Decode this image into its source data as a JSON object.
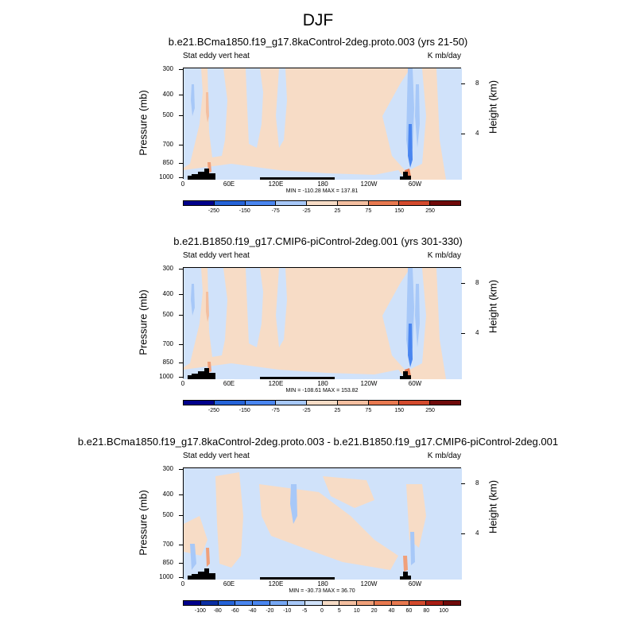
{
  "title": "DJF",
  "colors": {
    "cmap": [
      "#00008b",
      "#0b2fa3",
      "#2563d8",
      "#4a86f0",
      "#77a8f5",
      "#a7c8f8",
      "#d0e2fa",
      "#f7dcc6",
      "#f4bfa0",
      "#f0a07a",
      "#e87950",
      "#d34a2d",
      "#a81d14",
      "#700a0a"
    ],
    "terrain": "#000000"
  },
  "chart_data": [
    {
      "type": "heatmap",
      "title": "b.e21.BCma1850.f19_g17.8kaControl-2deg.proto.003 (yrs 21-50)",
      "left_label": "Stat eddy vert heat",
      "right_label": "K mb/day",
      "xlabel": "",
      "ylabel": "Pressure (mb)",
      "ylabel_right": "Height (km)",
      "x_ticks": [
        "0",
        "60E",
        "120E",
        "180",
        "120W",
        "60W"
      ],
      "y_ticks": [
        "300",
        "400",
        "500",
        "700",
        "850",
        "1000"
      ],
      "y_right_ticks": [
        "8",
        "4"
      ],
      "min_max": "MIN = -110.28  MAX = 137.81",
      "colorbar_labels": [
        "-250",
        "-150",
        "-75",
        "-25",
        "25",
        "75",
        "150",
        "250"
      ]
    },
    {
      "type": "heatmap",
      "title": "b.e21.B1850.f19_g17.CMIP6-piControl-2deg.001 (yrs 301-330)",
      "left_label": "Stat eddy vert heat",
      "right_label": "K mb/day",
      "xlabel": "",
      "ylabel": "Pressure (mb)",
      "ylabel_right": "Height (km)",
      "x_ticks": [
        "0",
        "60E",
        "120E",
        "180",
        "120W",
        "60W"
      ],
      "y_ticks": [
        "300",
        "400",
        "500",
        "700",
        "850",
        "1000"
      ],
      "y_right_ticks": [
        "8",
        "4"
      ],
      "min_max": "MIN = -108.61  MAX = 153.82",
      "colorbar_labels": [
        "-250",
        "-150",
        "-75",
        "-25",
        "25",
        "75",
        "150",
        "250"
      ]
    },
    {
      "type": "heatmap",
      "title": "b.e21.BCma1850.f19_g17.8kaControl-2deg.proto.003 - b.e21.B1850.f19_g17.CMIP6-piControl-2deg.001",
      "left_label": "Stat eddy vert heat",
      "right_label": "K mb/day",
      "xlabel": "",
      "ylabel": "Pressure (mb)",
      "ylabel_right": "Height (km)",
      "x_ticks": [
        "0",
        "60E",
        "120E",
        "180",
        "120W",
        "60W"
      ],
      "y_ticks": [
        "300",
        "400",
        "500",
        "700",
        "850",
        "1000"
      ],
      "y_right_ticks": [
        "8",
        "4"
      ],
      "min_max": "MIN = -30.73  MAX = 36.70",
      "colorbar_labels": [
        "-100",
        "-80",
        "-60",
        "-40",
        "-20",
        "-10",
        "-5",
        "0",
        "5",
        "10",
        "20",
        "40",
        "60",
        "80",
        "100"
      ]
    }
  ]
}
